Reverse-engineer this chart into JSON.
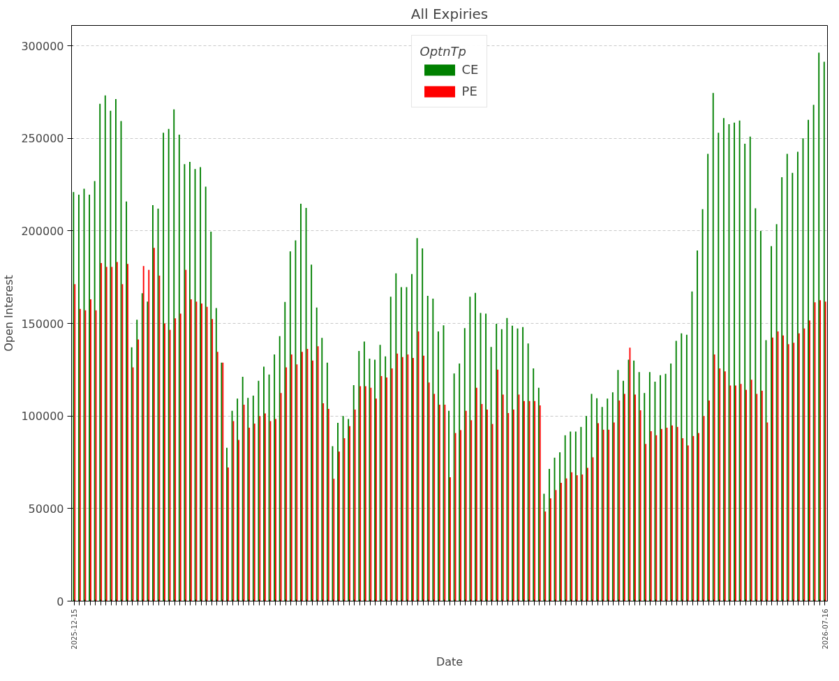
{
  "chart_data": {
    "type": "bar",
    "title": "All Expiries",
    "xlabel": "Date",
    "ylabel": "Open Interest",
    "legend_title": "OptnTp",
    "categories": [
      "2025-12-15",
      null,
      null,
      null,
      null,
      null,
      null,
      null,
      null,
      null,
      null,
      null,
      null,
      null,
      null,
      null,
      null,
      null,
      null,
      null,
      null,
      null,
      null,
      null,
      null,
      null,
      null,
      null,
      null,
      null,
      null,
      null,
      null,
      null,
      null,
      null,
      null,
      null,
      null,
      null,
      null,
      null,
      null,
      null,
      null,
      null,
      null,
      null,
      null,
      null,
      null,
      null,
      null,
      null,
      null,
      null,
      null,
      null,
      null,
      null,
      null,
      null,
      null,
      null,
      null,
      null,
      null,
      null,
      null,
      null,
      null,
      null,
      null,
      null,
      null,
      null,
      null,
      null,
      null,
      null,
      null,
      null,
      null,
      null,
      null,
      null,
      null,
      null,
      null,
      null,
      null,
      null,
      null,
      null,
      null,
      null,
      null,
      null,
      null,
      null,
      null,
      null,
      null,
      null,
      null,
      null,
      null,
      null,
      null,
      null,
      null,
      null,
      null,
      null,
      null,
      null,
      null,
      null,
      null,
      null,
      null,
      null,
      null,
      null,
      null,
      null,
      null,
      null,
      null,
      null,
      null,
      null,
      null,
      null,
      null,
      null,
      null,
      null,
      null,
      null,
      null,
      null,
      "2026-07-16"
    ],
    "series": [
      {
        "name": "CE",
        "color": "#008000",
        "values": [
          221000,
          219600,
          222800,
          219600,
          226900,
          268700,
          273200,
          264900,
          271200,
          259400,
          215900,
          137100,
          152000,
          166300,
          161800,
          213900,
          212000,
          253000,
          255100,
          265700,
          252000,
          236100,
          237300,
          233400,
          234500,
          223900,
          199600,
          158300,
          128800,
          82800,
          102800,
          109400,
          121200,
          109800,
          111000,
          119000,
          126700,
          122400,
          133300,
          143200,
          161600,
          189000,
          194900,
          214700,
          212400,
          181800,
          158600,
          142200,
          128800,
          83700,
          96300,
          100000,
          98400,
          116700,
          135100,
          140200,
          131000,
          130400,
          138400,
          132200,
          164500,
          177100,
          169600,
          169600,
          176700,
          196100,
          190600,
          164900,
          163400,
          145700,
          149000,
          102800,
          123000,
          128400,
          147500,
          164500,
          166500,
          155700,
          155300,
          137300,
          149800,
          146900,
          153000,
          148800,
          147300,
          148100,
          139200,
          125700,
          115300,
          58000,
          71400,
          77500,
          80400,
          89600,
          91600,
          91600,
          94100,
          100000,
          112000,
          109600,
          104900,
          109400,
          112800,
          124900,
          119000,
          130400,
          130000,
          123700,
          112400,
          123700,
          118600,
          122000,
          122800,
          128400,
          140600,
          144700,
          143900,
          167300,
          189400,
          211800,
          241600,
          274500,
          253000,
          261000,
          257700,
          258500,
          259600,
          247100,
          251000,
          212200,
          200000,
          141000,
          191800,
          203700,
          229000,
          241600,
          231400,
          242800,
          250000,
          260000,
          268100,
          296300,
          291400
        ]
      },
      {
        "name": "PE",
        "color": "#ff0000",
        "values": [
          171200,
          157900,
          157100,
          163000,
          157100,
          182600,
          180600,
          180600,
          183200,
          171200,
          182200,
          126300,
          141400,
          181000,
          179000,
          190800,
          175900,
          150000,
          146500,
          152800,
          155300,
          179000,
          163000,
          161800,
          160800,
          159000,
          152400,
          134700,
          128800,
          72200,
          97300,
          87100,
          106100,
          93700,
          95900,
          100000,
          101400,
          97300,
          98400,
          112400,
          126300,
          133300,
          127900,
          134700,
          136300,
          130000,
          137700,
          106900,
          103900,
          66100,
          80800,
          88000,
          94500,
          103500,
          116100,
          116100,
          115300,
          109400,
          121600,
          120800,
          125700,
          133700,
          131800,
          133300,
          131400,
          145700,
          132600,
          118100,
          112000,
          106100,
          106100,
          66900,
          90800,
          92400,
          102800,
          97700,
          115300,
          106500,
          103500,
          95700,
          125100,
          111600,
          101600,
          103500,
          111600,
          108100,
          108100,
          108100,
          105700,
          48400,
          55500,
          60000,
          63900,
          66300,
          69600,
          68000,
          68400,
          72000,
          77700,
          96100,
          92600,
          92600,
          96500,
          108400,
          112000,
          136900,
          111600,
          103100,
          84900,
          91800,
          89600,
          93000,
          93700,
          94900,
          94100,
          88000,
          84100,
          89200,
          90800,
          100000,
          108400,
          133300,
          125700,
          124100,
          116500,
          116500,
          117300,
          114100,
          119600,
          112000,
          113700,
          96500,
          142400,
          145700,
          143500,
          138800,
          139600,
          144700,
          147300,
          151600,
          161400,
          162600,
          161800
        ]
      }
    ],
    "ylim": [
      0,
      311000
    ],
    "yticks": [
      0,
      50000,
      100000,
      150000,
      200000,
      250000,
      300000
    ],
    "grid": "y",
    "legend": "top"
  }
}
